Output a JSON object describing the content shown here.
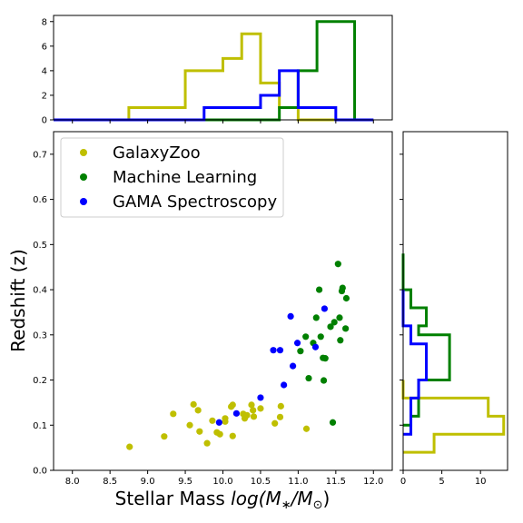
{
  "chart_data": [
    {
      "type": "scatter",
      "panel": "main",
      "xlabel_text": "Stellar Mass ",
      "xlabel_math": "log(M",
      "xlabel_sub1": "∗",
      "xlabel_mid": "/M",
      "xlabel_sub2": "⊙",
      "xlabel_end": ")",
      "ylabel": "Redshift (z)",
      "xlim": [
        7.75,
        12.25
      ],
      "ylim": [
        0.0,
        0.75
      ],
      "xticks": [
        "8.0",
        "8.5",
        "9.0",
        "9.5",
        "10.0",
        "10.5",
        "11.0",
        "11.5",
        "12.0"
      ],
      "yticks": [
        "0.0",
        "0.1",
        "0.2",
        "0.3",
        "0.4",
        "0.5",
        "0.6",
        "0.7"
      ],
      "legend": "top-left",
      "series": [
        {
          "name": "GalaxyZoo",
          "color": "#bfbf00",
          "points": [
            [
              8.76,
              0.052
            ],
            [
              9.22,
              0.075
            ],
            [
              9.34,
              0.125
            ],
            [
              9.56,
              0.1
            ],
            [
              9.61,
              0.146
            ],
            [
              9.67,
              0.133
            ],
            [
              9.69,
              0.086
            ],
            [
              9.79,
              0.06
            ],
            [
              9.86,
              0.11
            ],
            [
              9.92,
              0.084
            ],
            [
              9.96,
              0.08
            ],
            [
              10.03,
              0.108
            ],
            [
              10.03,
              0.115
            ],
            [
              10.11,
              0.141
            ],
            [
              10.13,
              0.145
            ],
            [
              10.13,
              0.076
            ],
            [
              10.27,
              0.125
            ],
            [
              10.29,
              0.115
            ],
            [
              10.32,
              0.122
            ],
            [
              10.38,
              0.145
            ],
            [
              10.4,
              0.133
            ],
            [
              10.41,
              0.119
            ],
            [
              10.5,
              0.137
            ],
            [
              10.69,
              0.104
            ],
            [
              10.76,
              0.118
            ],
            [
              10.77,
              0.142
            ],
            [
              11.11,
              0.092
            ]
          ]
        },
        {
          "name": "Machine Learning",
          "color": "#008000",
          "points": [
            [
              11.03,
              0.264
            ],
            [
              11.1,
              0.296
            ],
            [
              11.14,
              0.204
            ],
            [
              11.2,
              0.282
            ],
            [
              11.24,
              0.338
            ],
            [
              11.28,
              0.4
            ],
            [
              11.3,
              0.296
            ],
            [
              11.33,
              0.249
            ],
            [
              11.34,
              0.199
            ],
            [
              11.36,
              0.248
            ],
            [
              11.43,
              0.318
            ],
            [
              11.46,
              0.106
            ],
            [
              11.48,
              0.328
            ],
            [
              11.53,
              0.457
            ],
            [
              11.55,
              0.338
            ],
            [
              11.56,
              0.288
            ],
            [
              11.58,
              0.397
            ],
            [
              11.59,
              0.404
            ],
            [
              11.63,
              0.314
            ],
            [
              11.64,
              0.381
            ]
          ]
        },
        {
          "name": "GAMA Spectroscopy",
          "color": "#0000ff",
          "points": [
            [
              9.95,
              0.106
            ],
            [
              10.18,
              0.126
            ],
            [
              10.5,
              0.161
            ],
            [
              10.67,
              0.266
            ],
            [
              10.76,
              0.266
            ],
            [
              10.81,
              0.189
            ],
            [
              10.9,
              0.341
            ],
            [
              10.93,
              0.231
            ],
            [
              10.99,
              0.282
            ],
            [
              11.23,
              0.273
            ],
            [
              11.35,
              0.358
            ]
          ]
        }
      ]
    },
    {
      "type": "histogram",
      "panel": "top",
      "xlim": [
        7.75,
        12.25
      ],
      "ylim": [
        0,
        8.5
      ],
      "yticks": [
        "0",
        "2",
        "4",
        "6",
        "8"
      ],
      "series": [
        {
          "name": "GalaxyZoo",
          "color": "#bfbf00",
          "edges": [
            7.75,
            8.75,
            9.5,
            10.0,
            10.25,
            10.5,
            10.75,
            11.0,
            12.0
          ],
          "counts": [
            0,
            1,
            4,
            5,
            7,
            3,
            1,
            0
          ]
        },
        {
          "name": "Machine Learning",
          "color": "#008000",
          "edges": [
            7.75,
            10.75,
            11.0,
            11.25,
            11.75
          ],
          "counts": [
            0,
            1,
            4,
            8
          ]
        },
        {
          "name": "GAMA Spectroscopy",
          "color": "#0000ff",
          "edges": [
            7.75,
            9.75,
            10.5,
            10.75,
            11.0,
            11.5,
            12.0
          ],
          "counts": [
            0,
            1,
            2,
            4,
            1,
            0
          ]
        }
      ]
    },
    {
      "type": "histogram",
      "panel": "right",
      "orientation": "horizontal",
      "xlim": [
        0,
        13.5
      ],
      "ylim": [
        0.0,
        0.75
      ],
      "xticks": [
        "0",
        "5",
        "10"
      ],
      "series": [
        {
          "name": "GalaxyZoo",
          "color": "#bfbf00",
          "edges": [
            0.04,
            0.08,
            0.12,
            0.16,
            0.2
          ],
          "counts": [
            4,
            13,
            11,
            0
          ]
        },
        {
          "name": "Machine Learning",
          "color": "#008000",
          "edges": [
            0.1,
            0.12,
            0.2,
            0.3,
            0.32,
            0.36,
            0.4,
            0.48
          ],
          "counts": [
            1,
            2,
            6,
            2,
            3,
            1,
            0
          ]
        },
        {
          "name": "GAMA Spectroscopy",
          "color": "#0000ff",
          "edges": [
            0.08,
            0.1,
            0.16,
            0.2,
            0.28,
            0.32,
            0.4
          ],
          "counts": [
            1,
            1,
            2,
            3,
            1,
            0
          ]
        }
      ]
    }
  ]
}
